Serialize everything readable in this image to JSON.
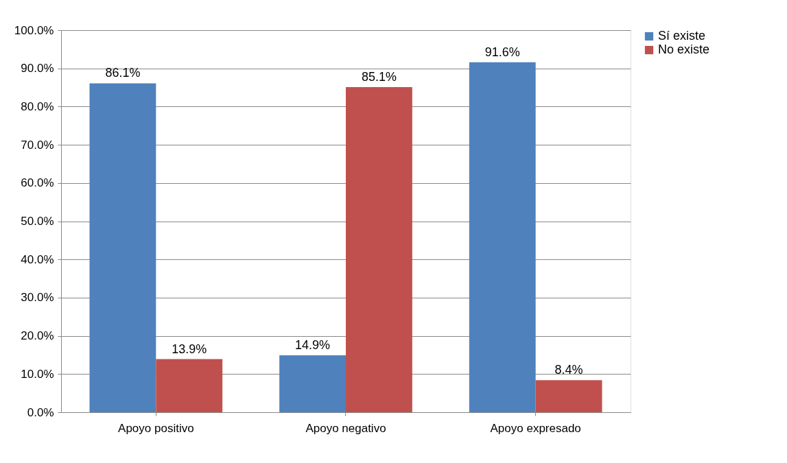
{
  "chart_data": {
    "type": "bar",
    "categories": [
      "Apoyo positivo",
      "Apoyo negativo",
      "Apoyo expresado"
    ],
    "series": [
      {
        "name": "Sí existe",
        "color": "#4f81bd",
        "values": [
          86.1,
          14.9,
          91.6
        ],
        "value_labels": [
          "86.1%",
          "14.9%",
          "91.6%"
        ]
      },
      {
        "name": "No existe",
        "color": "#c0504d",
        "values": [
          13.9,
          85.1,
          8.4
        ],
        "value_labels": [
          "13.9%",
          "85.1%",
          "8.4%"
        ]
      }
    ],
    "ylim": [
      0,
      100
    ],
    "yticks": [
      {
        "value": 0,
        "label": "0.0%"
      },
      {
        "value": 10,
        "label": "10.0%"
      },
      {
        "value": 20,
        "label": "20.0%"
      },
      {
        "value": 30,
        "label": "30.0%"
      },
      {
        "value": 40,
        "label": "40.0%"
      },
      {
        "value": 50,
        "label": "50.0%"
      },
      {
        "value": 60,
        "label": "60.0%"
      },
      {
        "value": 70,
        "label": "70.0%"
      },
      {
        "value": 80,
        "label": "80.0%"
      },
      {
        "value": 90,
        "label": "90.0%"
      },
      {
        "value": 100,
        "label": "100.0%"
      }
    ],
    "grid": "y",
    "legend": "right"
  }
}
